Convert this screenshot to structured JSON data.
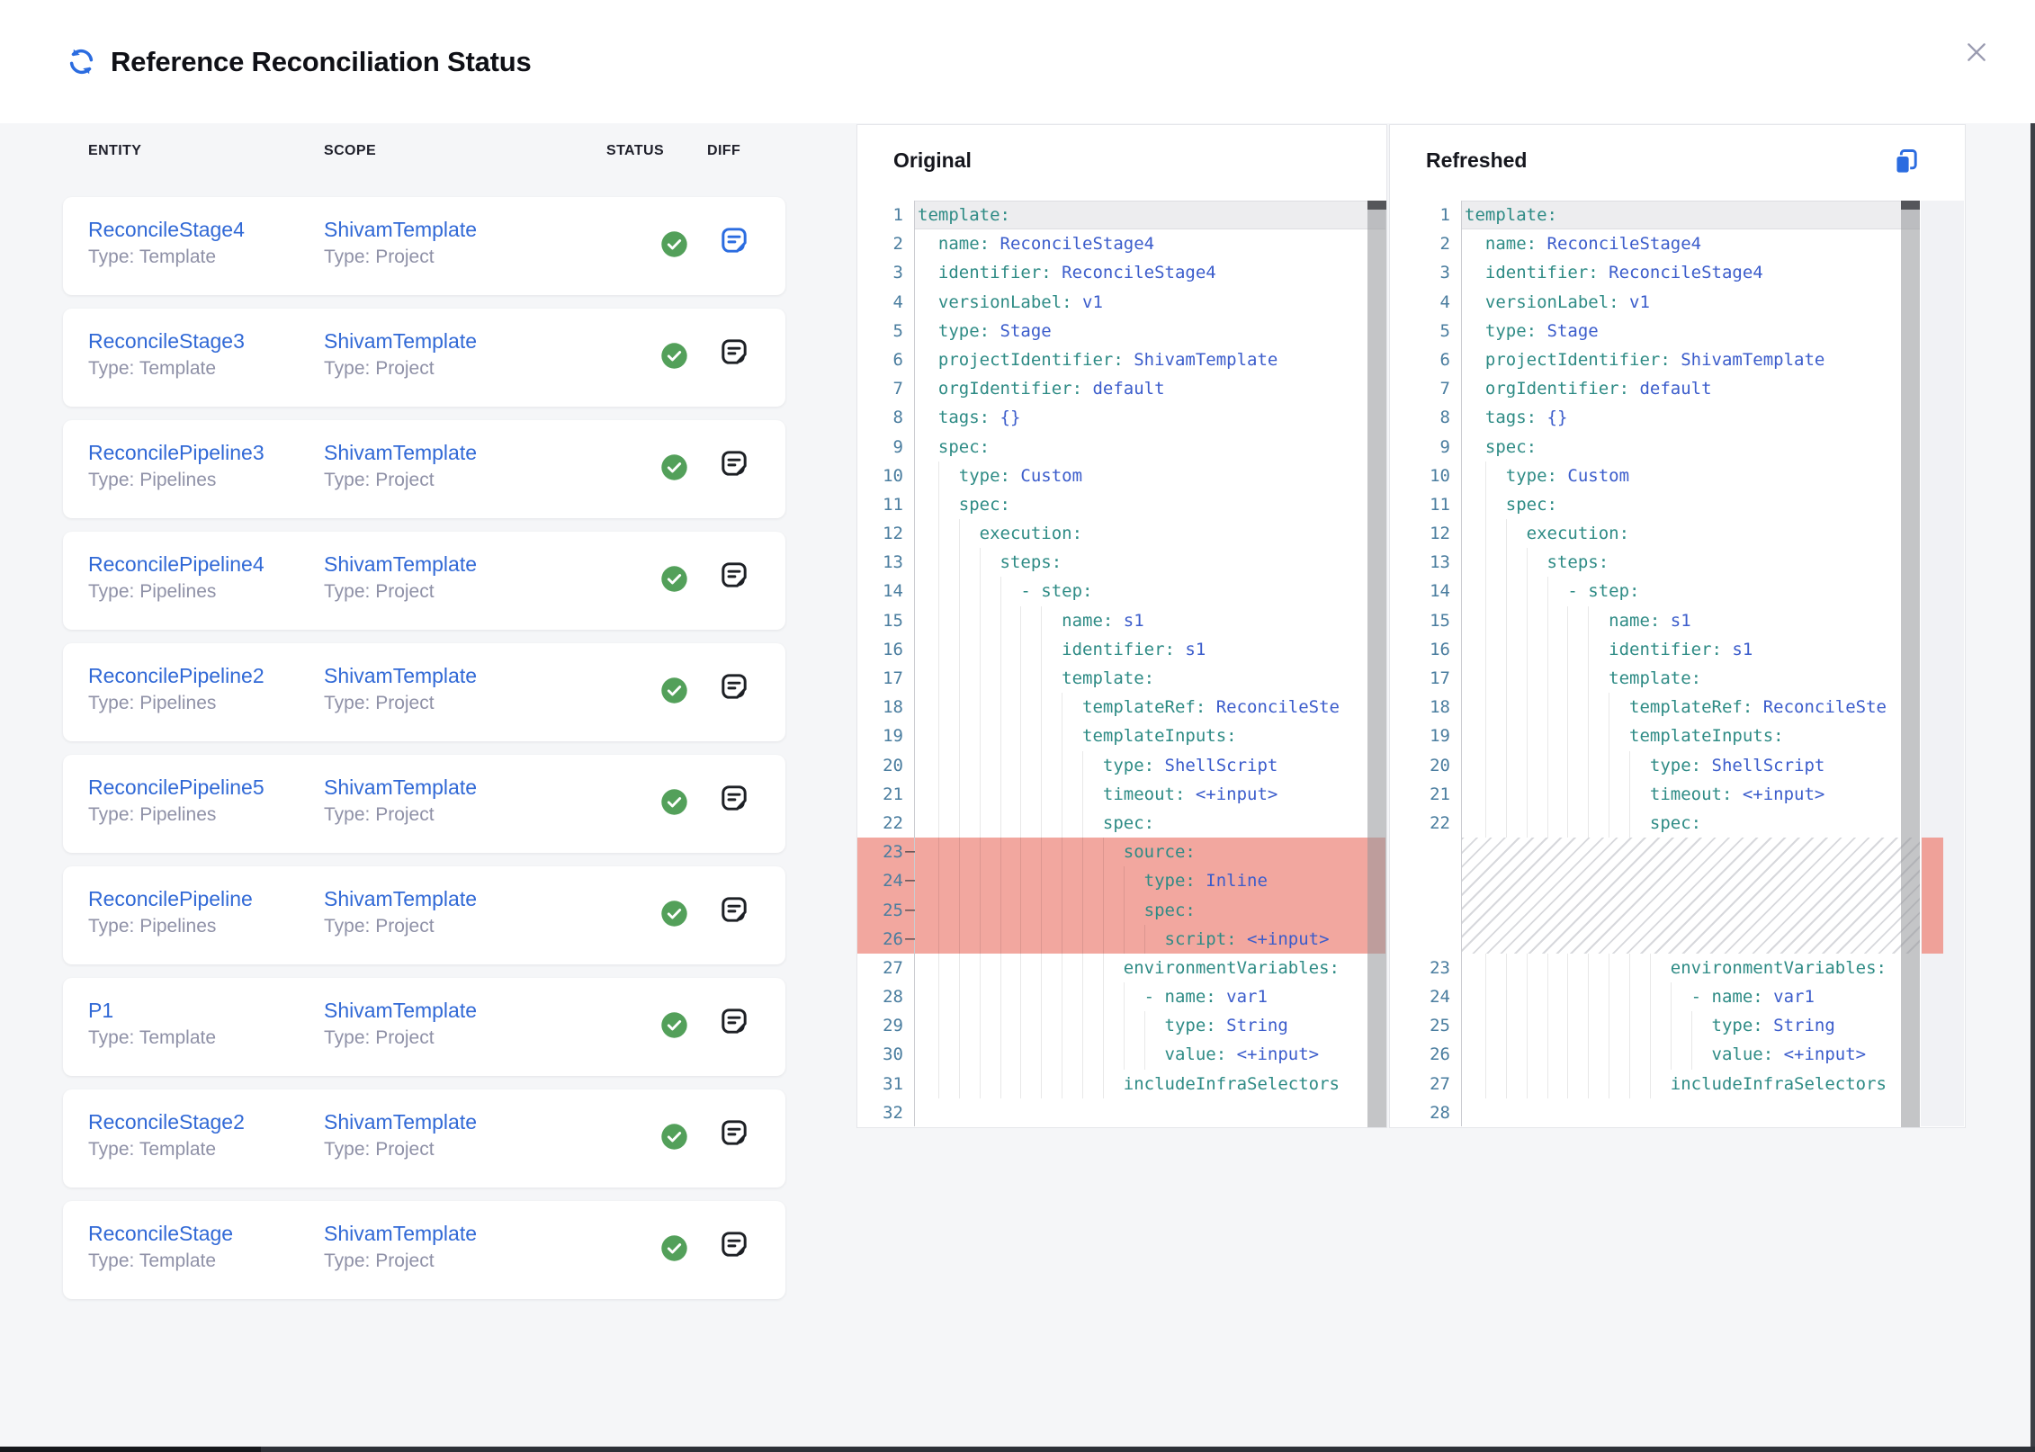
{
  "header": {
    "title": "Reference Reconciliation Status"
  },
  "colors": {
    "accent_blue": "#2B6CE0",
    "link_blue": "#3169D6",
    "status_green": "#53A05A",
    "diff_icon_active": "#2B6CE0",
    "diff_icon_default": "#1D2025",
    "removed_line_bg": "#F2A79F",
    "ruler_marker_red": "#EFA199",
    "code_key_teal": "#2E8B85",
    "code_value_blue": "#3B5CCB",
    "line_number": "#4A7D9F"
  },
  "table": {
    "columns": [
      "ENTITY",
      "SCOPE",
      "STATUS",
      "DIFF"
    ],
    "rows": [
      {
        "entity": "ReconcileStage4",
        "entityType": "Type: Template",
        "scope": "ShivamTemplate",
        "scopeType": "Type: Project",
        "status": "success",
        "diffActive": true
      },
      {
        "entity": "ReconcileStage3",
        "entityType": "Type: Template",
        "scope": "ShivamTemplate",
        "scopeType": "Type: Project",
        "status": "success",
        "diffActive": false
      },
      {
        "entity": "ReconcilePipeline3",
        "entityType": "Type: Pipelines",
        "scope": "ShivamTemplate",
        "scopeType": "Type: Project",
        "status": "success",
        "diffActive": false
      },
      {
        "entity": "ReconcilePipeline4",
        "entityType": "Type: Pipelines",
        "scope": "ShivamTemplate",
        "scopeType": "Type: Project",
        "status": "success",
        "diffActive": false
      },
      {
        "entity": "ReconcilePipeline2",
        "entityType": "Type: Pipelines",
        "scope": "ShivamTemplate",
        "scopeType": "Type: Project",
        "status": "success",
        "diffActive": false
      },
      {
        "entity": "ReconcilePipeline5",
        "entityType": "Type: Pipelines",
        "scope": "ShivamTemplate",
        "scopeType": "Type: Project",
        "status": "success",
        "diffActive": false
      },
      {
        "entity": "ReconcilePipeline",
        "entityType": "Type: Pipelines",
        "scope": "ShivamTemplate",
        "scopeType": "Type: Project",
        "status": "success",
        "diffActive": false
      },
      {
        "entity": "P1",
        "entityType": "Type: Template",
        "scope": "ShivamTemplate",
        "scopeType": "Type: Project",
        "status": "success",
        "diffActive": false
      },
      {
        "entity": "ReconcileStage2",
        "entityType": "Type: Template",
        "scope": "ShivamTemplate",
        "scopeType": "Type: Project",
        "status": "success",
        "diffActive": false
      },
      {
        "entity": "ReconcileStage",
        "entityType": "Type: Template",
        "scope": "ShivamTemplate",
        "scopeType": "Type: Project",
        "status": "success",
        "diffActive": false
      }
    ]
  },
  "diff": {
    "original": {
      "title": "Original",
      "lines": [
        {
          "n": 1,
          "i": 0,
          "cur": true,
          "p": [
            [
              "k",
              "template:"
            ]
          ]
        },
        {
          "n": 2,
          "i": 2,
          "p": [
            [
              "k",
              "name: "
            ],
            [
              "v",
              "ReconcileStage4"
            ]
          ]
        },
        {
          "n": 3,
          "i": 2,
          "p": [
            [
              "k",
              "identifier: "
            ],
            [
              "v",
              "ReconcileStage4"
            ]
          ]
        },
        {
          "n": 4,
          "i": 2,
          "p": [
            [
              "k",
              "versionLabel: "
            ],
            [
              "v",
              "v1"
            ]
          ]
        },
        {
          "n": 5,
          "i": 2,
          "p": [
            [
              "k",
              "type: "
            ],
            [
              "v",
              "Stage"
            ]
          ]
        },
        {
          "n": 6,
          "i": 2,
          "p": [
            [
              "k",
              "projectIdentifier: "
            ],
            [
              "v",
              "ShivamTemplate"
            ]
          ]
        },
        {
          "n": 7,
          "i": 2,
          "p": [
            [
              "k",
              "orgIdentifier: "
            ],
            [
              "v",
              "default"
            ]
          ]
        },
        {
          "n": 8,
          "i": 2,
          "p": [
            [
              "k",
              "tags: "
            ],
            [
              "v",
              "{}"
            ]
          ]
        },
        {
          "n": 9,
          "i": 2,
          "p": [
            [
              "k",
              "spec:"
            ]
          ]
        },
        {
          "n": 10,
          "i": 4,
          "p": [
            [
              "k",
              "type: "
            ],
            [
              "v",
              "Custom"
            ]
          ]
        },
        {
          "n": 11,
          "i": 4,
          "p": [
            [
              "k",
              "spec:"
            ]
          ]
        },
        {
          "n": 12,
          "i": 6,
          "p": [
            [
              "k",
              "execution:"
            ]
          ]
        },
        {
          "n": 13,
          "i": 8,
          "p": [
            [
              "k",
              "steps:"
            ]
          ]
        },
        {
          "n": 14,
          "i": 10,
          "p": [
            [
              "d",
              "- "
            ],
            [
              "k",
              "step:"
            ]
          ]
        },
        {
          "n": 15,
          "i": 14,
          "p": [
            [
              "k",
              "name: "
            ],
            [
              "v",
              "s1"
            ]
          ]
        },
        {
          "n": 16,
          "i": 14,
          "p": [
            [
              "k",
              "identifier: "
            ],
            [
              "v",
              "s1"
            ]
          ]
        },
        {
          "n": 17,
          "i": 14,
          "p": [
            [
              "k",
              "template:"
            ]
          ]
        },
        {
          "n": 18,
          "i": 16,
          "p": [
            [
              "k",
              "templateRef: "
            ],
            [
              "v",
              "ReconcileSte"
            ]
          ]
        },
        {
          "n": 19,
          "i": 16,
          "p": [
            [
              "k",
              "templateInputs:"
            ]
          ]
        },
        {
          "n": 20,
          "i": 18,
          "p": [
            [
              "k",
              "type: "
            ],
            [
              "v",
              "ShellScript"
            ]
          ]
        },
        {
          "n": 21,
          "i": 18,
          "p": [
            [
              "k",
              "timeout: "
            ],
            [
              "v",
              "<+input>"
            ]
          ]
        },
        {
          "n": 22,
          "i": 18,
          "p": [
            [
              "k",
              "spec:"
            ]
          ]
        },
        {
          "n": 23,
          "i": 20,
          "rm": true,
          "p": [
            [
              "k",
              "source:"
            ]
          ]
        },
        {
          "n": 24,
          "i": 22,
          "rm": true,
          "p": [
            [
              "k",
              "type: "
            ],
            [
              "v",
              "Inline"
            ]
          ]
        },
        {
          "n": 25,
          "i": 22,
          "rm": true,
          "p": [
            [
              "k",
              "spec:"
            ]
          ]
        },
        {
          "n": 26,
          "i": 24,
          "rm": true,
          "p": [
            [
              "k",
              "script: "
            ],
            [
              "v",
              "<+input>"
            ]
          ]
        },
        {
          "n": 27,
          "i": 20,
          "p": [
            [
              "k",
              "environmentVariables:"
            ]
          ]
        },
        {
          "n": 28,
          "i": 22,
          "p": [
            [
              "d",
              "- "
            ],
            [
              "k",
              "name: "
            ],
            [
              "v",
              "var1"
            ]
          ]
        },
        {
          "n": 29,
          "i": 24,
          "p": [
            [
              "k",
              "type: "
            ],
            [
              "v",
              "String"
            ]
          ]
        },
        {
          "n": 30,
          "i": 24,
          "p": [
            [
              "k",
              "value: "
            ],
            [
              "v",
              "<+input>"
            ]
          ]
        },
        {
          "n": 31,
          "i": 20,
          "p": [
            [
              "k",
              "includeInfraSelectors"
            ]
          ]
        },
        {
          "n": 32,
          "i": 0,
          "p": []
        }
      ]
    },
    "refreshed": {
      "title": "Refreshed",
      "lines": [
        {
          "n": 1,
          "i": 0,
          "cur": true,
          "p": [
            [
              "k",
              "template:"
            ]
          ]
        },
        {
          "n": 2,
          "i": 2,
          "p": [
            [
              "k",
              "name: "
            ],
            [
              "v",
              "ReconcileStage4"
            ]
          ]
        },
        {
          "n": 3,
          "i": 2,
          "p": [
            [
              "k",
              "identifier: "
            ],
            [
              "v",
              "ReconcileStage4"
            ]
          ]
        },
        {
          "n": 4,
          "i": 2,
          "p": [
            [
              "k",
              "versionLabel: "
            ],
            [
              "v",
              "v1"
            ]
          ]
        },
        {
          "n": 5,
          "i": 2,
          "p": [
            [
              "k",
              "type: "
            ],
            [
              "v",
              "Stage"
            ]
          ]
        },
        {
          "n": 6,
          "i": 2,
          "p": [
            [
              "k",
              "projectIdentifier: "
            ],
            [
              "v",
              "ShivamTemplate"
            ]
          ]
        },
        {
          "n": 7,
          "i": 2,
          "p": [
            [
              "k",
              "orgIdentifier: "
            ],
            [
              "v",
              "default"
            ]
          ]
        },
        {
          "n": 8,
          "i": 2,
          "p": [
            [
              "k",
              "tags: "
            ],
            [
              "v",
              "{}"
            ]
          ]
        },
        {
          "n": 9,
          "i": 2,
          "p": [
            [
              "k",
              "spec:"
            ]
          ]
        },
        {
          "n": 10,
          "i": 4,
          "p": [
            [
              "k",
              "type: "
            ],
            [
              "v",
              "Custom"
            ]
          ]
        },
        {
          "n": 11,
          "i": 4,
          "p": [
            [
              "k",
              "spec:"
            ]
          ]
        },
        {
          "n": 12,
          "i": 6,
          "p": [
            [
              "k",
              "execution:"
            ]
          ]
        },
        {
          "n": 13,
          "i": 8,
          "p": [
            [
              "k",
              "steps:"
            ]
          ]
        },
        {
          "n": 14,
          "i": 10,
          "p": [
            [
              "d",
              "- "
            ],
            [
              "k",
              "step:"
            ]
          ]
        },
        {
          "n": 15,
          "i": 14,
          "p": [
            [
              "k",
              "name: "
            ],
            [
              "v",
              "s1"
            ]
          ]
        },
        {
          "n": 16,
          "i": 14,
          "p": [
            [
              "k",
              "identifier: "
            ],
            [
              "v",
              "s1"
            ]
          ]
        },
        {
          "n": 17,
          "i": 14,
          "p": [
            [
              "k",
              "template:"
            ]
          ]
        },
        {
          "n": 18,
          "i": 16,
          "p": [
            [
              "k",
              "templateRef: "
            ],
            [
              "v",
              "ReconcileSte"
            ]
          ]
        },
        {
          "n": 19,
          "i": 16,
          "p": [
            [
              "k",
              "templateInputs:"
            ]
          ]
        },
        {
          "n": 20,
          "i": 18,
          "p": [
            [
              "k",
              "type: "
            ],
            [
              "v",
              "ShellScript"
            ]
          ]
        },
        {
          "n": 21,
          "i": 18,
          "p": [
            [
              "k",
              "timeout: "
            ],
            [
              "v",
              "<+input>"
            ]
          ]
        },
        {
          "n": 22,
          "i": 18,
          "p": [
            [
              "k",
              "spec:"
            ]
          ]
        },
        {
          "hatch": true,
          "rows": 4
        },
        {
          "n": 23,
          "i": 20,
          "p": [
            [
              "k",
              "environmentVariables:"
            ]
          ]
        },
        {
          "n": 24,
          "i": 22,
          "p": [
            [
              "d",
              "- "
            ],
            [
              "k",
              "name: "
            ],
            [
              "v",
              "var1"
            ]
          ]
        },
        {
          "n": 25,
          "i": 24,
          "p": [
            [
              "k",
              "type: "
            ],
            [
              "v",
              "String"
            ]
          ]
        },
        {
          "n": 26,
          "i": 24,
          "p": [
            [
              "k",
              "value: "
            ],
            [
              "v",
              "<+input>"
            ]
          ]
        },
        {
          "n": 27,
          "i": 20,
          "p": [
            [
              "k",
              "includeInfraSelectors"
            ]
          ]
        },
        {
          "n": 28,
          "i": 0,
          "p": []
        }
      ]
    }
  }
}
